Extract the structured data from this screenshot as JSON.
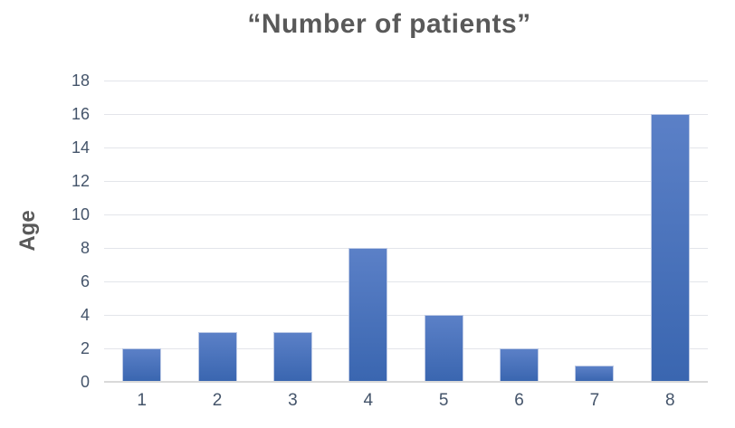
{
  "chart_data": {
    "type": "bar",
    "title": "“Number of patients”",
    "xlabel": "",
    "ylabel": "Age",
    "categories": [
      "1",
      "2",
      "3",
      "4",
      "5",
      "6",
      "7",
      "8"
    ],
    "values": [
      2,
      3,
      3,
      8,
      4,
      2,
      1,
      16
    ],
    "ylim": [
      0,
      18
    ],
    "ytick_step": 2,
    "grid": true,
    "legend_position": "none",
    "colors": {
      "bar_gradient_top": "#5b80c7",
      "bar_gradient_bottom": "#3a66b0",
      "bar_border": "#bcc9e5",
      "gridline": "#e3e5ea",
      "axis_line": "#d9d9d9",
      "tick_text": "#44546a",
      "title_text": "#595959"
    }
  }
}
